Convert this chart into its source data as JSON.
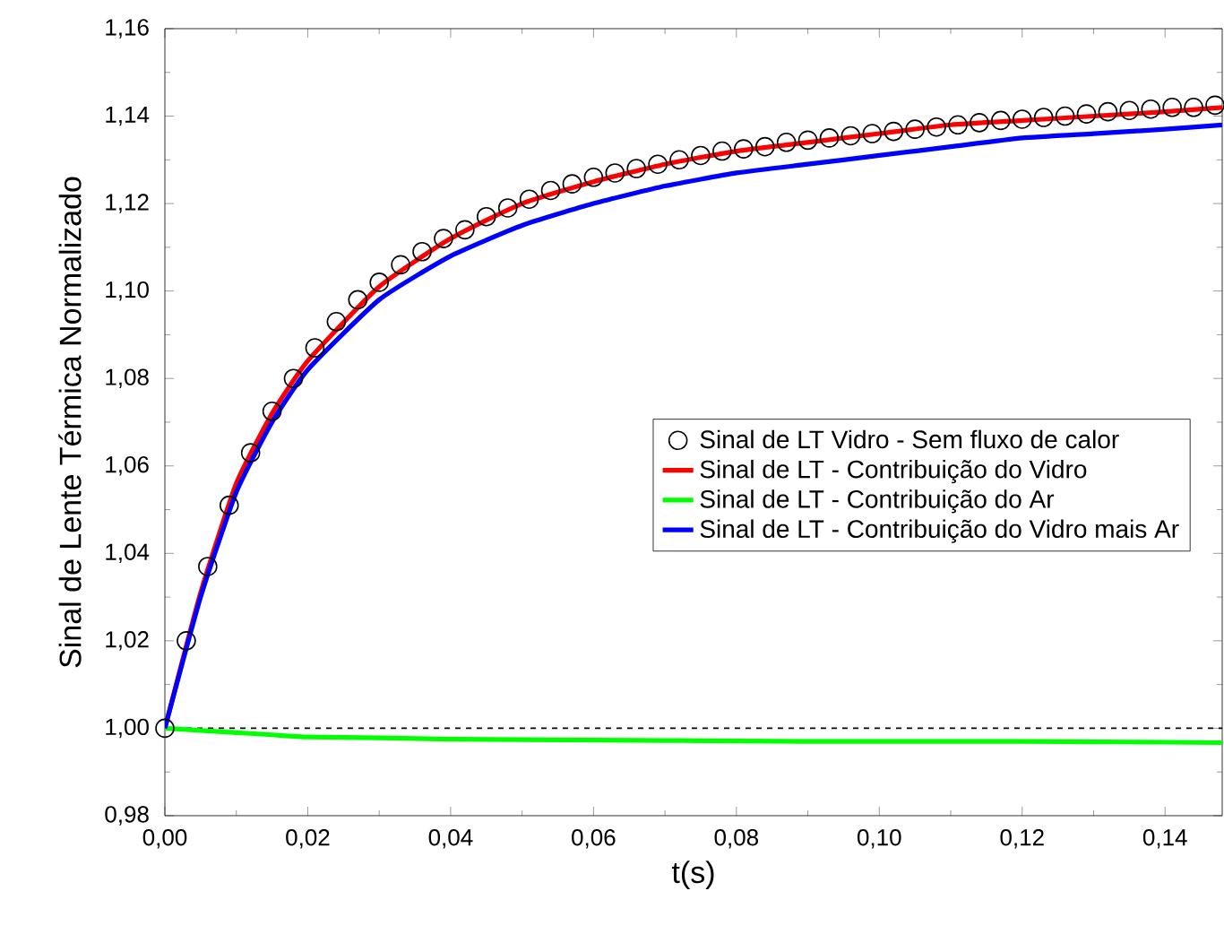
{
  "chart_data": {
    "type": "line",
    "xlabel": "t(s)",
    "ylabel": "Sinal de Lente Térmica Normalizado",
    "xlim": [
      0,
      0.148
    ],
    "ylim": [
      0.98,
      1.16
    ],
    "xticks": [
      {
        "value": 0,
        "label": "0,00"
      },
      {
        "value": 0.02,
        "label": "0,02"
      },
      {
        "value": 0.04,
        "label": "0,04"
      },
      {
        "value": 0.06,
        "label": "0,06"
      },
      {
        "value": 0.08,
        "label": "0,08"
      },
      {
        "value": 0.1,
        "label": "0,10"
      },
      {
        "value": 0.12,
        "label": "0,12"
      },
      {
        "value": 0.14,
        "label": "0,14"
      }
    ],
    "yticks": [
      {
        "value": 0.98,
        "label": "0,98"
      },
      {
        "value": 1.0,
        "label": "1,00"
      },
      {
        "value": 1.02,
        "label": "1,02"
      },
      {
        "value": 1.04,
        "label": "1,04"
      },
      {
        "value": 1.06,
        "label": "1,06"
      },
      {
        "value": 1.08,
        "label": "1,08"
      },
      {
        "value": 1.1,
        "label": "1,10"
      },
      {
        "value": 1.12,
        "label": "1,12"
      },
      {
        "value": 1.14,
        "label": "1,14"
      },
      {
        "value": 1.16,
        "label": "1,16"
      }
    ],
    "legend": "right",
    "grid": false,
    "ref_lines": [
      {
        "axis": "y",
        "value": 1.0,
        "color": "#000000",
        "line_style": "dashed"
      }
    ],
    "series": [
      {
        "name": "Sinal de LT Vidro - Sem fluxo de calor",
        "type": "scatter",
        "marker": "circle",
        "color": "#000000",
        "x": [
          0,
          0.003,
          0.006,
          0.009,
          0.012,
          0.015,
          0.018,
          0.021,
          0.024,
          0.027,
          0.03,
          0.033,
          0.036,
          0.039,
          0.042,
          0.045,
          0.048,
          0.051,
          0.054,
          0.057,
          0.06,
          0.063,
          0.066,
          0.069,
          0.072,
          0.075,
          0.078,
          0.081,
          0.084,
          0.087,
          0.09,
          0.093,
          0.096,
          0.099,
          0.102,
          0.105,
          0.108,
          0.111,
          0.114,
          0.117,
          0.12,
          0.123,
          0.126,
          0.129,
          0.132,
          0.135,
          0.138,
          0.141,
          0.144,
          0.147
        ],
        "values": [
          1.0,
          1.02,
          1.037,
          1.051,
          1.063,
          1.0725,
          1.08,
          1.087,
          1.093,
          1.098,
          1.102,
          1.106,
          1.109,
          1.112,
          1.114,
          1.117,
          1.119,
          1.121,
          1.123,
          1.1245,
          1.126,
          1.127,
          1.128,
          1.129,
          1.13,
          1.131,
          1.132,
          1.1325,
          1.133,
          1.134,
          1.1345,
          1.135,
          1.1355,
          1.136,
          1.1365,
          1.137,
          1.1375,
          1.138,
          1.1385,
          1.139,
          1.1393,
          1.1397,
          1.14,
          1.1405,
          1.141,
          1.1413,
          1.1416,
          1.142,
          1.142,
          1.1425
        ]
      },
      {
        "name": "Sinal de LT - Contribuição do Vidro",
        "color": "#ff0000",
        "x": [
          0,
          0.005,
          0.01,
          0.015,
          0.02,
          0.03,
          0.04,
          0.05,
          0.06,
          0.07,
          0.08,
          0.09,
          0.1,
          0.11,
          0.12,
          0.13,
          0.14,
          0.148
        ],
        "values": [
          1.0,
          1.031,
          1.056,
          1.072,
          1.084,
          1.101,
          1.112,
          1.12,
          1.125,
          1.129,
          1.132,
          1.134,
          1.136,
          1.138,
          1.139,
          1.14,
          1.141,
          1.142
        ]
      },
      {
        "name": "Sinal de LT - Contribuição do Ar",
        "color": "#00ff00",
        "x": [
          0,
          0.005,
          0.01,
          0.015,
          0.02,
          0.03,
          0.04,
          0.05,
          0.06,
          0.07,
          0.08,
          0.09,
          0.1,
          0.11,
          0.12,
          0.13,
          0.14,
          0.148
        ],
        "values": [
          1.0,
          0.9995,
          0.999,
          0.9985,
          0.998,
          0.9978,
          0.9975,
          0.9974,
          0.9973,
          0.9972,
          0.9971,
          0.997,
          0.997,
          0.997,
          0.997,
          0.9969,
          0.9968,
          0.9967
        ]
      },
      {
        "name": "Sinal de LT - Contribuição do Vidro mais Ar",
        "color": "#0000ff",
        "x": [
          0,
          0.005,
          0.01,
          0.015,
          0.02,
          0.03,
          0.04,
          0.05,
          0.06,
          0.07,
          0.08,
          0.09,
          0.1,
          0.11,
          0.12,
          0.13,
          0.14,
          0.148
        ],
        "values": [
          1.0,
          1.03,
          1.054,
          1.07,
          1.082,
          1.098,
          1.108,
          1.115,
          1.12,
          1.124,
          1.127,
          1.129,
          1.131,
          1.133,
          1.135,
          1.136,
          1.137,
          1.138
        ]
      }
    ]
  }
}
